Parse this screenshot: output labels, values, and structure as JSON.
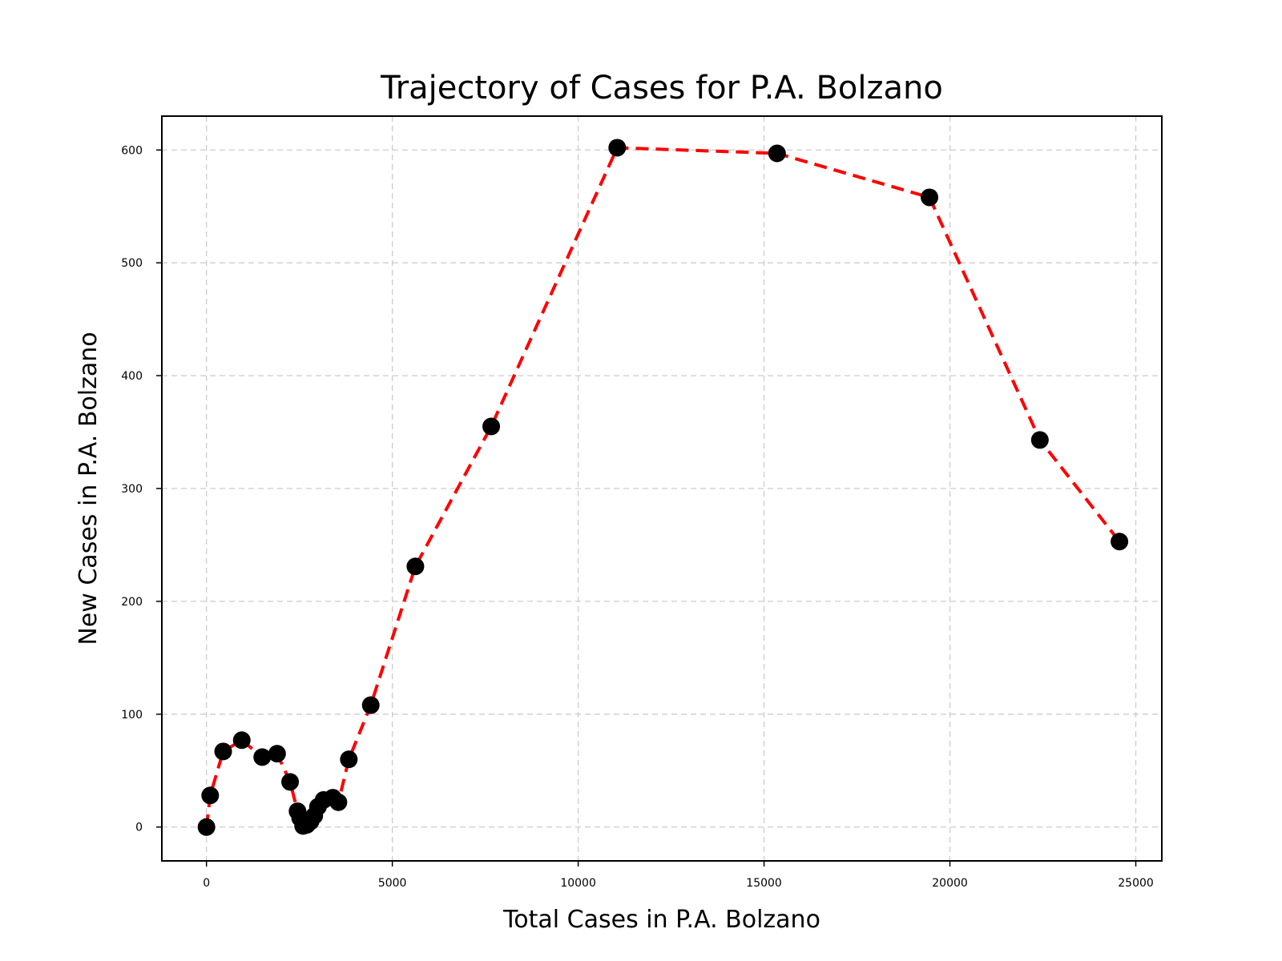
{
  "chart_data": {
    "type": "line",
    "title": "Trajectory of Cases for P.A. Bolzano",
    "xlabel": "Total Cases in P.A. Bolzano",
    "ylabel": "New Cases in P.A. Bolzano",
    "xlim": [
      -1200,
      25700
    ],
    "ylim": [
      -30,
      630
    ],
    "xticks": [
      0,
      5000,
      10000,
      15000,
      20000,
      25000
    ],
    "yticks": [
      0,
      100,
      200,
      300,
      400,
      500,
      600
    ],
    "grid": true,
    "series": [
      {
        "line_color": "#ff0000",
        "marker_color": "#000000",
        "line_style": "dashed",
        "x": [
          0,
          100,
          450,
          950,
          1500,
          1900,
          2250,
          2450,
          2520,
          2600,
          2700,
          2800,
          2900,
          3000,
          3150,
          3400,
          3550,
          3830,
          4420,
          5620,
          7660,
          11050,
          15350,
          19450,
          22420,
          24560
        ],
        "y": [
          0,
          28,
          67,
          77,
          62,
          65,
          40,
          14,
          8,
          1,
          2,
          5,
          10,
          18,
          24,
          26,
          22,
          60,
          108,
          231,
          355,
          602,
          597,
          558,
          343,
          253
        ]
      }
    ]
  }
}
